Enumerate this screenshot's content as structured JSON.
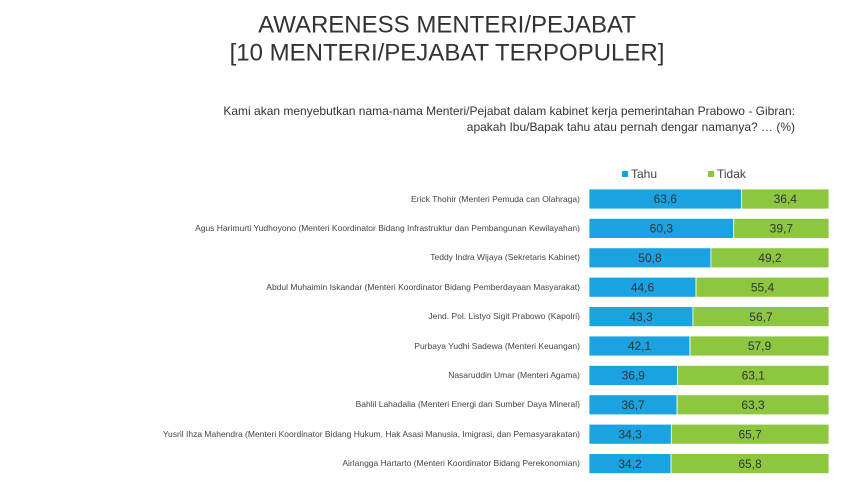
{
  "chart_data": {
    "type": "stacked-bar-horizontal",
    "title": [
      "AWARENESS MENTERI/PEJABAT",
      "[10 MENTERI/PEJABAT TERPOPULER]"
    ],
    "subtitle": [
      "Kami akan menyebutkan nama-nama Menteri/Pejabat dalam kabinet kerja pemerintahan Prabowo - Gibran:",
      "apakah Ibu/Bapak tahu atau pernah dengar namanya? … (%)"
    ],
    "categories": [
      "Erick Thohir (Menteri Pemuda can Olahraga)",
      "Agus Harimurti Yudhoyono (Menteri Koordinator Bidang Infrastruktur dan Pembangunan Kewilayahan)",
      "Teddy Indra Wijaya (Sekretaris Kabinet)",
      "Abdul Muhaimin Iskandar (Menteri Koordinator Bidang Pemberdayaan Masyarakat)",
      "Jend. Pol. Listyo Sigit Prabowo (Kapolri)",
      "Purbaya Yudhi Sadewa (Menteri Keuangan)",
      "Nasaruddin Umar (Menteri Agama)",
      "Bahlil Lahadalia (Menteri Energi dan Sumber Daya Mineral)",
      "Yusril Ihza Mahendra (Menteri Koordinator Bidang Hukum, Hak Asasi Manusia, Imigrasi, dan Pemasyarakatan)",
      "Airlangga Hartarto (Menteri Koordinator Bidang Perekonomian)"
    ],
    "series": [
      {
        "name": "Tahu",
        "color": "#1aa3e0",
        "values": [
          63.6,
          60.3,
          50.8,
          44.6,
          43.3,
          42.1,
          36.9,
          36.7,
          34.3,
          34.2
        ],
        "value_labels": [
          "63,6",
          "60,3",
          "50,8",
          "44,6",
          "43,3",
          "42,1",
          "36,9",
          "36,7",
          "34,3",
          "34,2"
        ]
      },
      {
        "name": "Tidak",
        "color": "#8dc63f",
        "values": [
          36.4,
          39.7,
          49.2,
          55.4,
          56.7,
          57.9,
          63.1,
          63.3,
          65.7,
          65.8
        ],
        "value_labels": [
          "36,4",
          "39,7",
          "49,2",
          "55,4",
          "56,7",
          "57,9",
          "63,1",
          "63,3",
          "65,7",
          "65,8"
        ]
      }
    ],
    "xlim": [
      0,
      100
    ]
  }
}
